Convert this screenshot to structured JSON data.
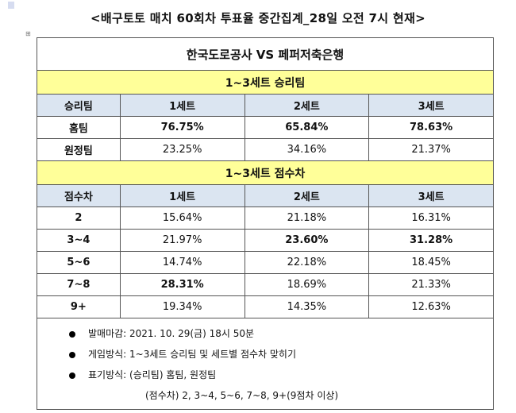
{
  "title": "<배구토토 매치 60회차 투표율 중간집계_28일 오전 7시 현재>",
  "match": "한국도로공사 VS 페퍼저축은행",
  "section1": {
    "title": "1~3세트 승리팀",
    "headers": [
      "승리팀",
      "1세트",
      "2세트",
      "3세트"
    ],
    "rows": [
      {
        "label": "홈팀",
        "values": [
          "76.75%",
          "65.84%",
          "78.63%"
        ],
        "bold": [
          true,
          true,
          true
        ]
      },
      {
        "label": "원정팀",
        "values": [
          "23.25%",
          "34.16%",
          "21.37%"
        ],
        "bold": [
          false,
          false,
          false
        ]
      }
    ]
  },
  "section2": {
    "title": "1~3세트 점수차",
    "headers": [
      "점수차",
      "1세트",
      "2세트",
      "3세트"
    ],
    "rows": [
      {
        "label": "2",
        "values": [
          "15.64%",
          "21.18%",
          "16.31%"
        ],
        "bold": [
          false,
          false,
          false
        ]
      },
      {
        "label": "3~4",
        "values": [
          "21.97%",
          "23.60%",
          "31.28%"
        ],
        "bold": [
          false,
          true,
          true
        ]
      },
      {
        "label": "5~6",
        "values": [
          "14.74%",
          "22.18%",
          "18.45%"
        ],
        "bold": [
          false,
          false,
          false
        ]
      },
      {
        "label": "7~8",
        "values": [
          "28.31%",
          "18.69%",
          "21.33%"
        ],
        "bold": [
          true,
          false,
          false
        ]
      },
      {
        "label": "9+",
        "values": [
          "19.34%",
          "14.35%",
          "12.63%"
        ],
        "bold": [
          false,
          false,
          false
        ]
      }
    ]
  },
  "notes": [
    "발매마감: 2021. 10. 29(금) 18시 50분",
    "게임방식: 1~3세트 승리팀 및 세트별 점수차 맞히기",
    "표기방식: (승리팀) 홈팀, 원정팀"
  ],
  "note_continuation": "(점수차) 2, 3~4, 5~6, 7~8, 9+(9점차 이상)"
}
